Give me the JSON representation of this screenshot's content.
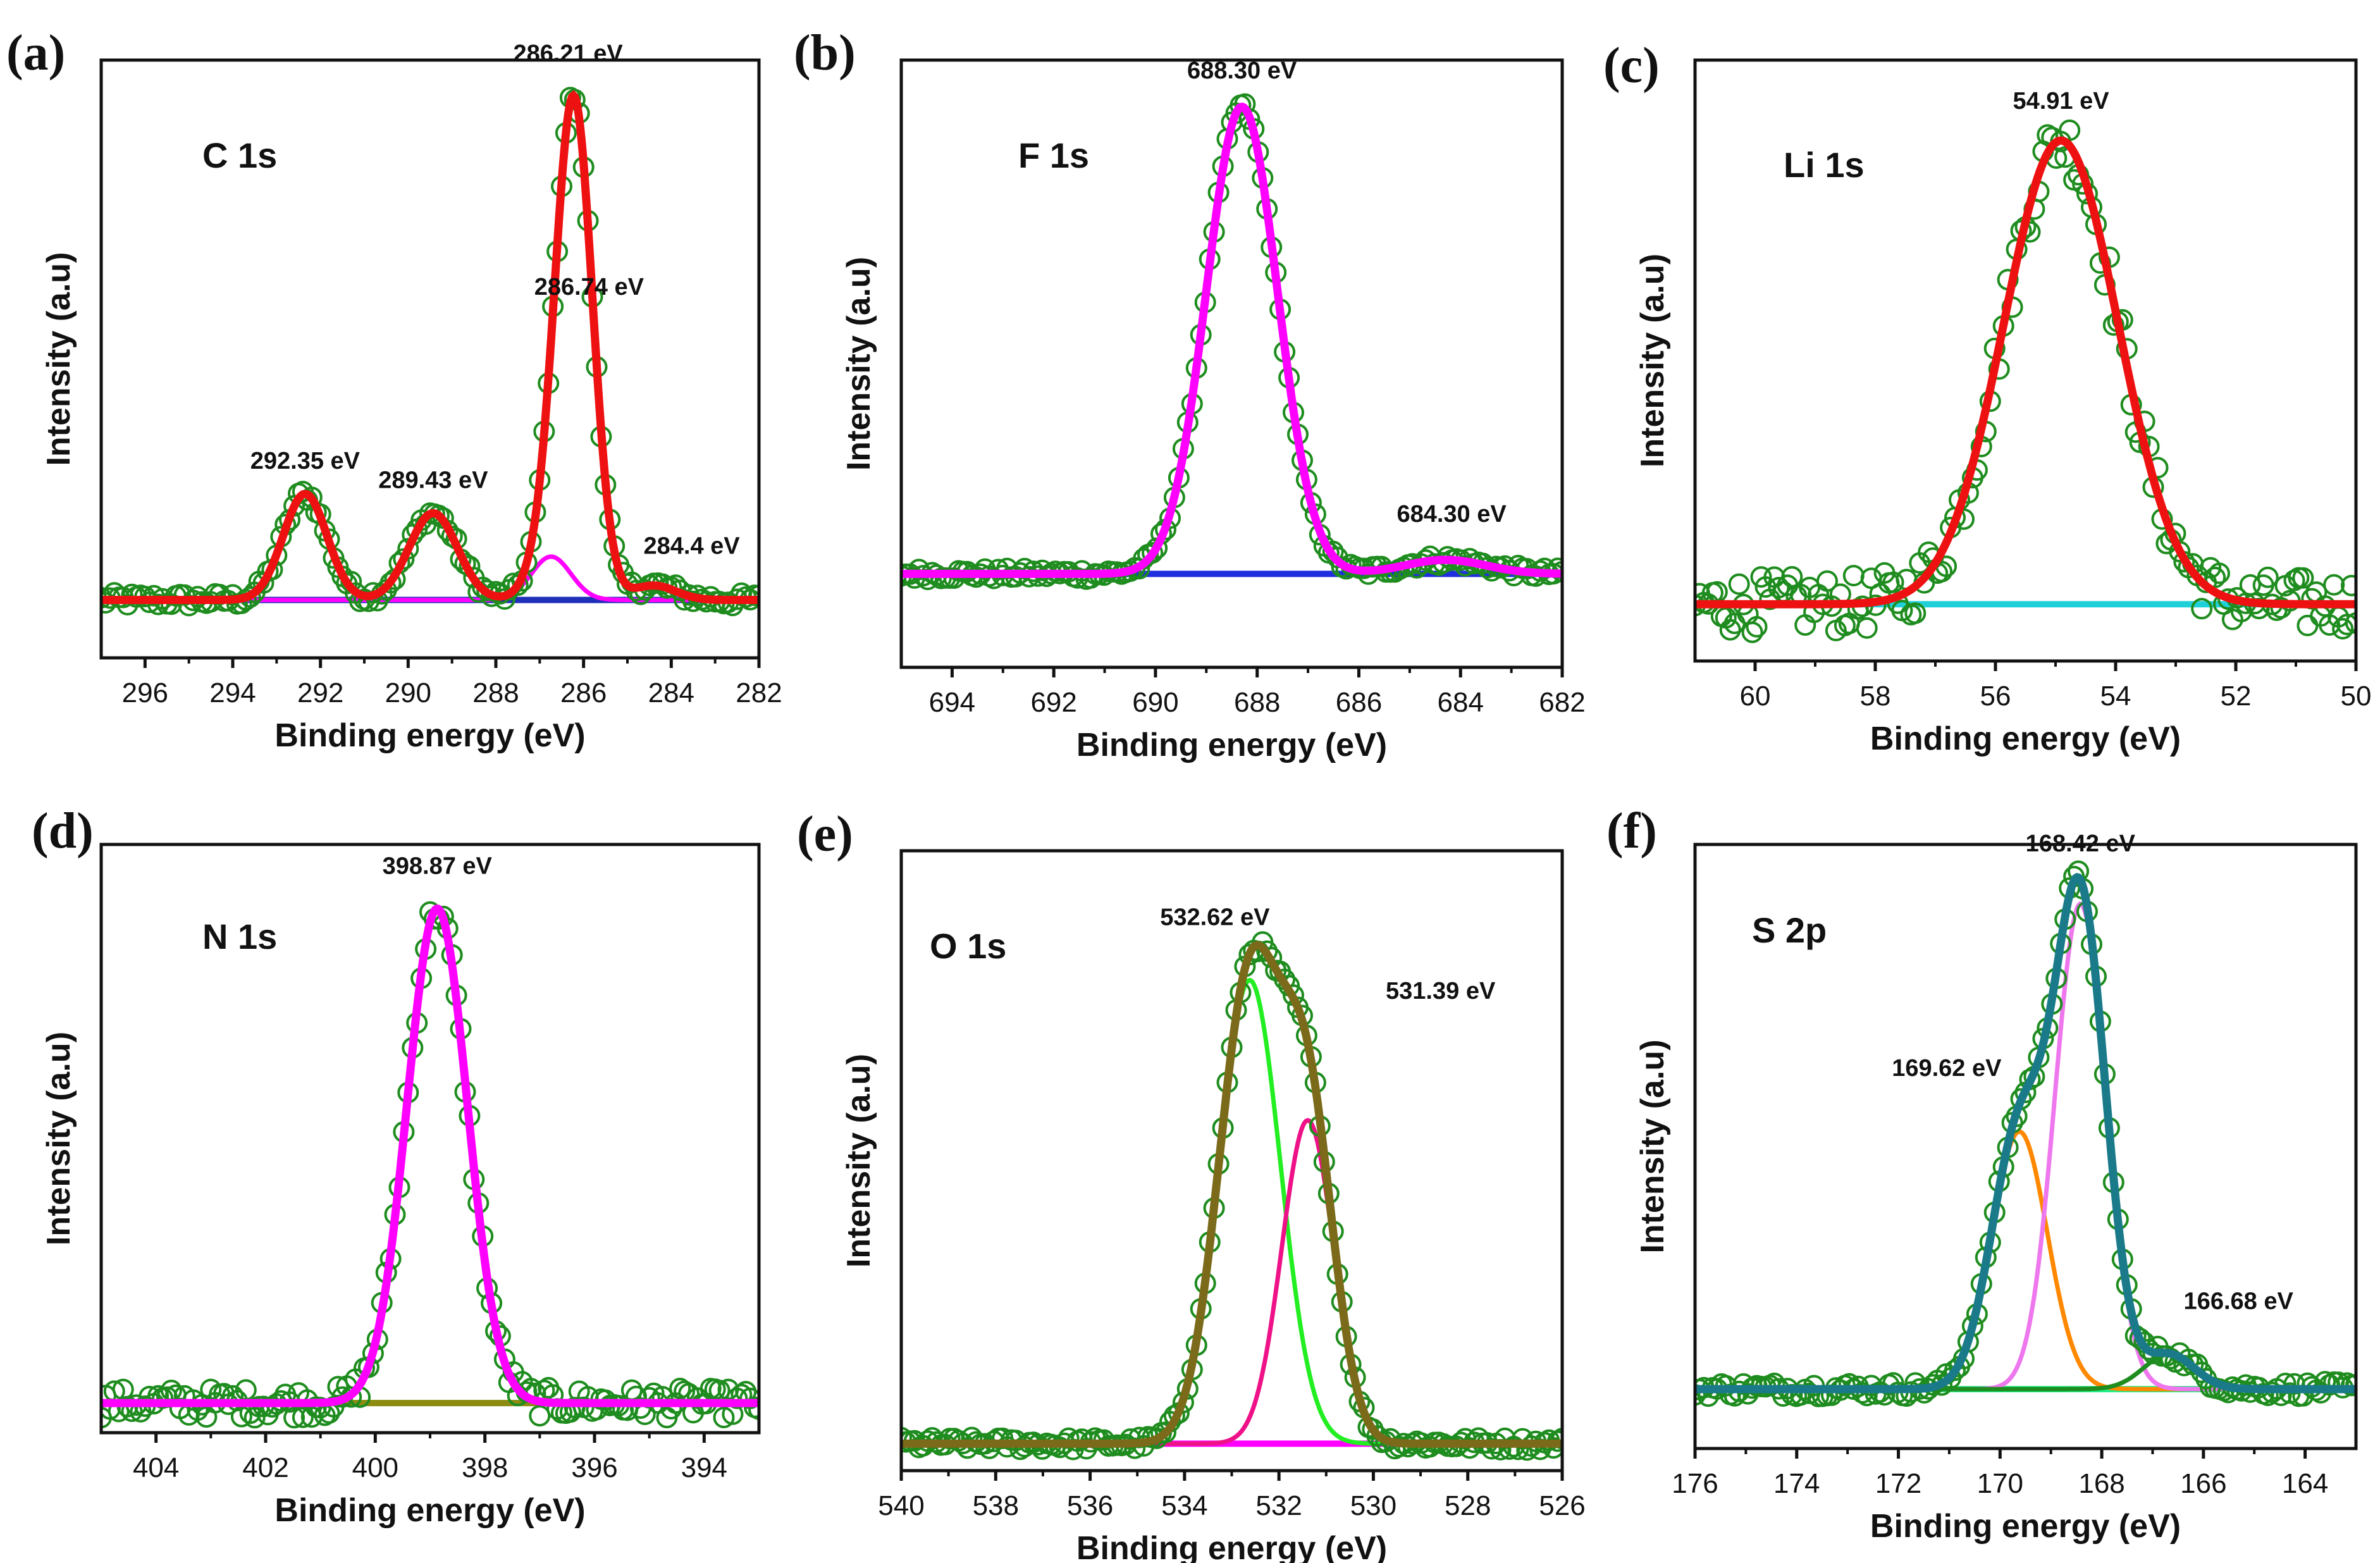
{
  "chart_data": [
    {
      "type": "line",
      "panel_label": "(a)",
      "core_level": "C 1s",
      "xlabel": "Binding energy (eV)",
      "ylabel": "Intensity (a.u)",
      "xlim": [
        297,
        282
      ],
      "ylim": [
        -0.12,
        1.12
      ],
      "ticks": [
        296,
        294,
        292,
        290,
        288,
        286,
        284,
        282
      ],
      "baseline": 0.0,
      "background": {
        "color": "#1f2fb8"
      },
      "peaks": [
        {
          "label": "292.35 eV",
          "center": 292.35,
          "height": 0.22,
          "sigma": 0.5
        },
        {
          "label": "289.43 eV",
          "center": 289.43,
          "height": 0.18,
          "sigma": 0.55
        },
        {
          "label": "286.74 eV",
          "center": 286.74,
          "height": 0.09,
          "sigma": 0.45
        },
        {
          "label": "286.21 eV",
          "center": 286.21,
          "height": 1.0,
          "sigma": 0.42
        },
        {
          "label": "284.4 eV",
          "center": 284.4,
          "height": 0.03,
          "sigma": 0.5
        }
      ],
      "components": [
        {
          "name": "component 286.74 eV",
          "center": 286.74,
          "height": 0.09,
          "sigma": 0.45,
          "color": "#ff00ff"
        }
      ],
      "envelope_color": "#ee1111",
      "data_color": "#1e8c1e",
      "noise": 0.015
    },
    {
      "type": "line",
      "panel_label": "(b)",
      "core_level": "F 1s",
      "xlabel": "Binding energy (eV)",
      "ylabel": "Intensity (a.u)",
      "xlim": [
        695,
        682
      ],
      "ylim": [
        -0.2,
        1.1
      ],
      "ticks": [
        694,
        692,
        690,
        688,
        686,
        684,
        682
      ],
      "baseline": 0.0,
      "background": {
        "color": "#1f2fe0"
      },
      "peaks": [
        {
          "label": "688.30 eV",
          "center": 688.3,
          "height": 1.0,
          "sigma": 0.7
        },
        {
          "label": "684.30 eV",
          "center": 684.3,
          "height": 0.03,
          "sigma": 0.8
        }
      ],
      "components": [],
      "envelope_color": "#ff00ff",
      "data_color": "#1e8c1e",
      "noise": 0.012
    },
    {
      "type": "line",
      "panel_label": "(c)",
      "core_level": "Li 1s",
      "xlabel": "Binding energy (eV)",
      "ylabel": "Intensity (a.u)",
      "xlim": [
        61,
        50
      ],
      "ylim": [
        -0.12,
        1.15
      ],
      "ticks": [
        60,
        58,
        56,
        54,
        52,
        50
      ],
      "baseline": 0.0,
      "background": {
        "color": "#20d0d8"
      },
      "peaks": [
        {
          "label": "54.91 eV",
          "center": 54.91,
          "height": 0.98,
          "sigma": 0.95
        }
      ],
      "components": [],
      "envelope_color": "#ee1111",
      "data_color": "#1e8c1e",
      "noise": 0.06
    },
    {
      "type": "line",
      "panel_label": "(d)",
      "core_level": "N 1s",
      "xlabel": "Binding energy (eV)",
      "ylabel": "Intensity (a.u)",
      "xlim": [
        405,
        393
      ],
      "ylim": [
        -0.06,
        1.13
      ],
      "ticks": [
        404,
        402,
        400,
        398,
        396,
        394
      ],
      "baseline": 0.0,
      "background": {
        "color": "#8c8c10"
      },
      "peaks": [
        {
          "label": "398.87 eV",
          "center": 398.87,
          "height": 1.0,
          "sigma": 0.55
        }
      ],
      "components": [],
      "envelope_color": "#ff00ff",
      "data_color": "#1e8c1e",
      "noise": 0.03
    },
    {
      "type": "line",
      "panel_label": "(e)",
      "core_level": "O 1s",
      "xlabel": "Binding energy (eV)",
      "ylabel": "Intensity (a.u)",
      "xlim": [
        540,
        526
      ],
      "ylim": [
        -0.05,
        1.1
      ],
      "ticks": [
        540,
        538,
        536,
        534,
        532,
        530,
        528,
        526
      ],
      "baseline": 0.0,
      "background": {
        "color": "#ff00ff"
      },
      "peaks": [
        {
          "label": "532.62 eV",
          "center": 532.62,
          "height": 0.86,
          "sigma": 0.65
        },
        {
          "label": "531.39 eV",
          "center": 531.39,
          "height": 0.6,
          "sigma": 0.55
        }
      ],
      "components": [
        {
          "name": "component 532.62 eV",
          "center": 532.62,
          "height": 0.86,
          "sigma": 0.65,
          "color": "#22ee22"
        },
        {
          "name": "component 531.39 eV",
          "center": 531.39,
          "height": 0.6,
          "sigma": 0.55,
          "color": "#ee1188"
        }
      ],
      "envelope_color": "#7a6a1a",
      "data_color": "#1e8c1e",
      "noise": 0.012
    },
    {
      "type": "line",
      "panel_label": "(f)",
      "core_level": "S 2p",
      "xlabel": "Binding energy (eV)",
      "ylabel": "Intensity (a.u)",
      "xlim": [
        176,
        163
      ],
      "ylim": [
        -0.12,
        1.1
      ],
      "ticks": [
        176,
        174,
        172,
        170,
        168,
        166,
        164
      ],
      "baseline": 0.0,
      "background": {
        "color": "#22ee88"
      },
      "peaks": [
        {
          "label": "169.62 eV",
          "center": 169.62,
          "height": 0.52,
          "sigma": 0.55
        },
        {
          "label": "168.42 eV",
          "center": 168.42,
          "height": 0.98,
          "sigma": 0.5
        },
        {
          "label": "166.68 eV",
          "center": 166.68,
          "height": 0.07,
          "sigma": 0.5
        }
      ],
      "components": [
        {
          "name": "component 169.62 eV",
          "center": 169.62,
          "height": 0.52,
          "sigma": 0.55,
          "color": "#ff8800"
        },
        {
          "name": "component 168.42 eV",
          "center": 168.42,
          "height": 0.98,
          "sigma": 0.5,
          "color": "#ee77ee"
        },
        {
          "name": "component 166.68 eV",
          "center": 166.68,
          "height": 0.07,
          "sigma": 0.5,
          "color": "#1e8c1e"
        }
      ],
      "envelope_color": "#1a7a8a",
      "data_color": "#1e8c1e",
      "noise": 0.015
    }
  ]
}
